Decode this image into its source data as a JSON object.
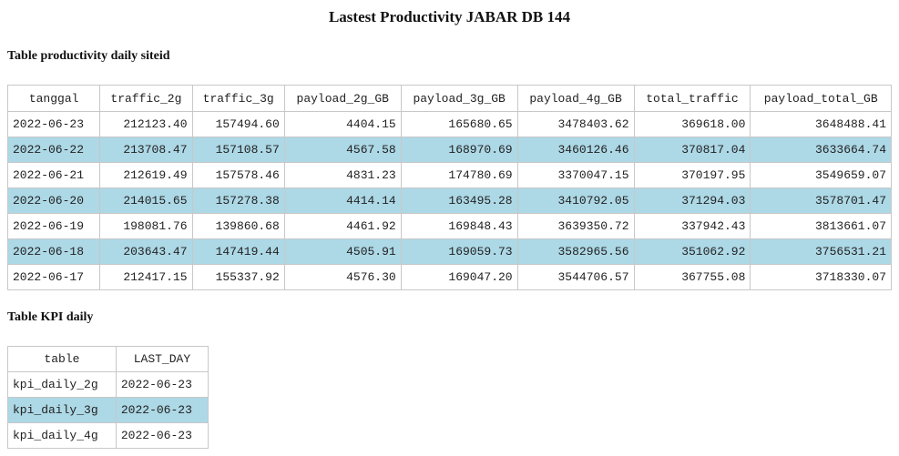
{
  "page": {
    "title": "Lastest Productivity JABAR DB 144"
  },
  "productivity": {
    "title": "Table productivity daily siteid",
    "columns": [
      "tanggal",
      "traffic_2g",
      "traffic_3g",
      "payload_2g_GB",
      "payload_3g_GB",
      "payload_4g_GB",
      "total_traffic",
      "payload_total_GB"
    ],
    "rows": [
      [
        "2022-06-23",
        "212123.40",
        "157494.60",
        "4404.15",
        "165680.65",
        "3478403.62",
        "369618.00",
        "3648488.41"
      ],
      [
        "2022-06-22",
        "213708.47",
        "157108.57",
        "4567.58",
        "168970.69",
        "3460126.46",
        "370817.04",
        "3633664.74"
      ],
      [
        "2022-06-21",
        "212619.49",
        "157578.46",
        "4831.23",
        "174780.69",
        "3370047.15",
        "370197.95",
        "3549659.07"
      ],
      [
        "2022-06-20",
        "214015.65",
        "157278.38",
        "4414.14",
        "163495.28",
        "3410792.05",
        "371294.03",
        "3578701.47"
      ],
      [
        "2022-06-19",
        "198081.76",
        "139860.68",
        "4461.92",
        "169848.43",
        "3639350.72",
        "337942.43",
        "3813661.07"
      ],
      [
        "2022-06-18",
        "203643.47",
        "147419.44",
        "4505.91",
        "169059.73",
        "3582965.56",
        "351062.92",
        "3756531.21"
      ],
      [
        "2022-06-17",
        "212417.15",
        "155337.92",
        "4576.30",
        "169047.20",
        "3544706.57",
        "367755.08",
        "3718330.07"
      ]
    ]
  },
  "kpi": {
    "title": "Table KPI daily",
    "columns": [
      "table",
      "LAST_DAY"
    ],
    "rows": [
      [
        "kpi_daily_2g",
        "2022-06-23"
      ],
      [
        "kpi_daily_3g",
        "2022-06-23"
      ],
      [
        "kpi_daily_4g",
        "2022-06-23"
      ]
    ]
  },
  "colors": {
    "alt_row_background": "#add8e6",
    "border": "#c8c8c8"
  }
}
